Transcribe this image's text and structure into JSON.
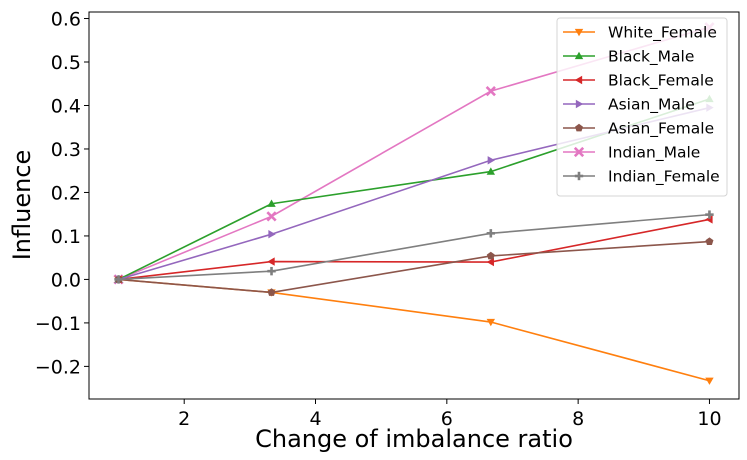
{
  "chart_data": {
    "type": "line",
    "title": "",
    "xlabel": "Change of imbalance ratio",
    "ylabel": "Influence",
    "x": [
      1,
      3.33,
      6.67,
      10
    ],
    "xlim": [
      0.55,
      10.45
    ],
    "ylim": [
      -0.275,
      0.615
    ],
    "xticks": [
      2,
      4,
      6,
      8,
      10
    ],
    "xtick_labels": [
      "2",
      "4",
      "6",
      "8",
      "10"
    ],
    "yticks": [
      -0.2,
      -0.1,
      0.0,
      0.1,
      0.2,
      0.3,
      0.4,
      0.5,
      0.6
    ],
    "ytick_labels": [
      "−0.2",
      "−0.1",
      "0.0",
      "0.1",
      "0.2",
      "0.3",
      "0.4",
      "0.5",
      "0.6"
    ],
    "grid": false,
    "legend_position": "top-right",
    "series": [
      {
        "name": "Indian_Male",
        "color": "#e377c2",
        "marker": "x",
        "values": [
          0,
          0.145,
          0.433,
          0.58
        ]
      },
      {
        "name": "White_Female",
        "color": "#ff7f0e",
        "marker": "triangle-down",
        "values": [
          0,
          -0.03,
          -0.098,
          -0.233
        ]
      },
      {
        "name": "Black_Male",
        "color": "#2ca02c",
        "marker": "triangle-up",
        "values": [
          0,
          0.174,
          0.248,
          0.415
        ]
      },
      {
        "name": "Black_Female",
        "color": "#d62728",
        "marker": "triangle-left",
        "values": [
          0,
          0.041,
          0.04,
          0.138
        ]
      },
      {
        "name": "Asian_Male",
        "color": "#9467bd",
        "marker": "triangle-right",
        "values": [
          0,
          0.104,
          0.274,
          0.395
        ]
      },
      {
        "name": "Asian_Female",
        "color": "#8c564b",
        "marker": "pentagon",
        "values": [
          0,
          -0.03,
          0.054,
          0.087
        ]
      },
      {
        "name": "Indian_Female",
        "color": "#7f7f7f",
        "marker": "plus",
        "values": [
          0,
          0.019,
          0.106,
          0.149
        ]
      }
    ],
    "legend_order": [
      "White_Female",
      "Black_Male",
      "Black_Female",
      "Asian_Male",
      "Asian_Female",
      "Indian_Male",
      "Indian_Female"
    ]
  }
}
